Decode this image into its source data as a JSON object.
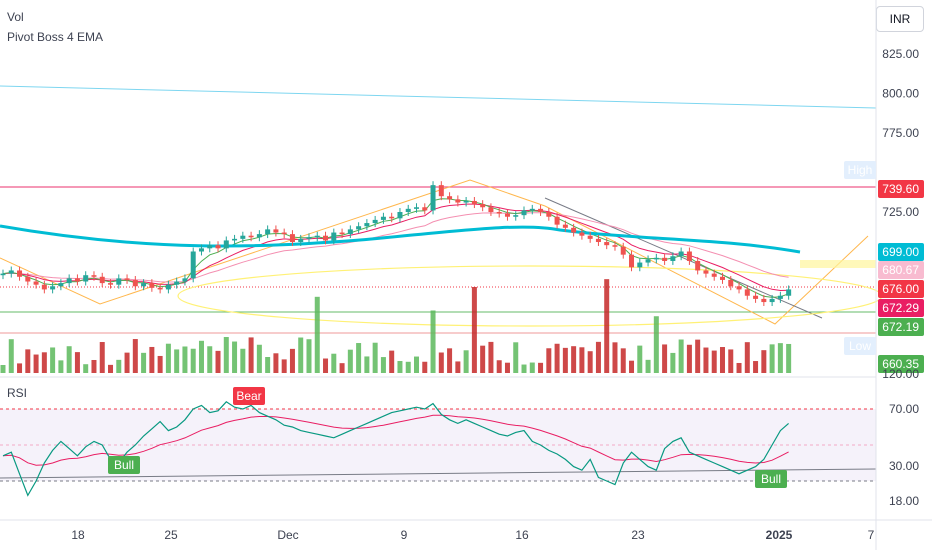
{
  "legend": {
    "vol": "Vol",
    "ema": "Pivot Boss 4 EMA",
    "rsi": "RSI"
  },
  "currency": "INR",
  "chart_data": {
    "type": "candlestick",
    "price_axis": {
      "ticks": [
        {
          "label": "825.00",
          "value": 825
        },
        {
          "label": "800.00",
          "value": 800
        },
        {
          "label": "775.00",
          "value": 775
        },
        {
          "label": "725.00",
          "value": 725
        }
      ],
      "ylim": [
        652,
        842
      ]
    },
    "rsi_axis": {
      "ticks": [
        {
          "label": "120.00",
          "value": 120
        },
        {
          "label": "70.00",
          "value": 70
        },
        {
          "label": "30.00",
          "value": 30
        },
        {
          "label": "18.00",
          "value": 18
        }
      ]
    },
    "price_tags": [
      {
        "label": "High",
        "value": "742.90",
        "color": "#ffffff",
        "text": "#131722",
        "label_bg": "#e3effd"
      },
      {
        "label": "",
        "value": "739.60",
        "color": "#f23645",
        "text": "#ffffff"
      },
      {
        "label": "",
        "value": "699.00",
        "color": "#00bcd4",
        "text": "#ffffff"
      },
      {
        "label": "",
        "value": "680.67",
        "color": "#f8bbd0",
        "text": "#131722"
      },
      {
        "label": "",
        "value": "676.00",
        "color": "#f23645",
        "text": "#ffffff"
      },
      {
        "label": "",
        "value": "672.29",
        "color": "#e91e63",
        "text": "#ffffff"
      },
      {
        "label": "",
        "value": "672.19",
        "color": "#4caf50",
        "text": "#ffffff"
      },
      {
        "label": "Low",
        "value": "663.05",
        "color": "#ffffff",
        "text": "#131722",
        "label_bg": "#e3effd"
      },
      {
        "label": "",
        "value": "660.35",
        "color": "#4caf50",
        "text": "#ffffff"
      }
    ],
    "x_axis_labels": [
      "18",
      "25",
      "Dec",
      "9",
      "16",
      "23",
      "2025",
      "7"
    ],
    "series": [
      {
        "name": "Price",
        "values": [
          686,
          688,
          684,
          681,
          679,
          676,
          678,
          680,
          683,
          681,
          685,
          684,
          680,
          679,
          683,
          682,
          678,
          680,
          677,
          676,
          679,
          681,
          683,
          700,
          702,
          704,
          702,
          707,
          708,
          710,
          709,
          711,
          714,
          712,
          711,
          706,
          708,
          709,
          710,
          707,
          712,
          711,
          714,
          716,
          718,
          720,
          722,
          721,
          725,
          727,
          728,
          726,
          742,
          735,
          733,
          731,
          732,
          730,
          728,
          725,
          724,
          722,
          723,
          726,
          727,
          725,
          722,
          717,
          715,
          712,
          710,
          708,
          706,
          704,
          703,
          698,
          690,
          693,
          695,
          696,
          694,
          697,
          700,
          694,
          688,
          686,
          684,
          682,
          678,
          676,
          672,
          670,
          668,
          670,
          672,
          676
        ]
      },
      {
        "name": "RSI",
        "values": [
          44,
          46,
          34,
          22,
          30,
          40,
          47,
          52,
          48,
          44,
          49,
          52,
          50,
          42,
          40,
          46,
          50,
          55,
          59,
          63,
          58,
          60,
          64,
          70,
          72,
          68,
          69,
          74,
          71,
          70,
          72,
          68,
          66,
          64,
          61,
          60,
          58,
          57,
          56,
          55,
          54,
          56,
          58,
          60,
          62,
          64,
          66,
          68,
          69,
          70,
          71,
          70,
          73,
          67,
          64,
          62,
          64,
          62,
          60,
          58,
          56,
          55,
          57,
          58,
          52,
          50,
          47,
          45,
          42,
          38,
          36,
          42,
          32,
          30,
          28,
          40,
          46,
          42,
          38,
          36,
          48,
          52,
          54,
          46,
          44,
          42,
          40,
          38,
          36,
          34,
          36,
          38,
          42,
          50,
          58,
          62
        ]
      }
    ],
    "annotations": [
      {
        "text": "Bear",
        "color": "#f23645"
      },
      {
        "text": "Bull",
        "color": "#4caf50"
      },
      {
        "text": "Bull",
        "color": "#4caf50"
      }
    ],
    "colors": {
      "up": "#26a69a",
      "down": "#ef5350",
      "ema_long": "#00bcd4",
      "ema_short": "#4caf50",
      "ema_mid": "#e91e63",
      "rsi_line": "#089981",
      "rsi_ma": "#e91e63",
      "rsi_band": "#7e57c2"
    }
  }
}
